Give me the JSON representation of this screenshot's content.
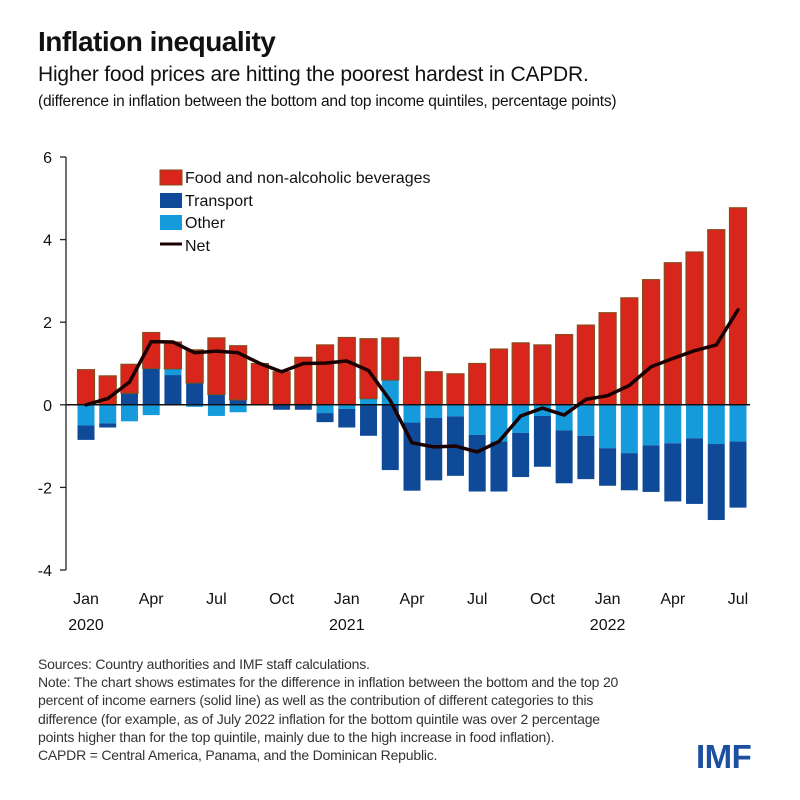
{
  "header": {
    "title": "Inflation inequality",
    "subtitle": "Higher food prices are hitting the poorest hardest in CAPDR.",
    "units": "(difference in inflation between the bottom and top income quintiles, percentage points)"
  },
  "footer": {
    "lines": [
      "Sources: Country authorities and IMF staff calculations.",
      "Note: The chart shows estimates for the difference in inflation between the bottom and the top 20",
      "percent of income earners (solid line) as well as the contribution of different categories to this",
      "difference (for example, as of July 2022 inflation for the bottom quintile was over 2 percentage",
      "points higher than for the top quintile, mainly due to the high increase in food inflation).",
      "CAPDR = Central America, Panama, and the Dominican Republic."
    ],
    "logo": "IMF"
  },
  "colors": {
    "food": "#d9261c",
    "food_edge": "#8b4a1e",
    "transport": "#0f4a99",
    "other": "#159bdc",
    "net": "#1a0000",
    "logo": "#1c4fa0"
  },
  "chart_data": {
    "type": "bar",
    "stacked": true,
    "title": "Inflation inequality",
    "xlabel": "",
    "ylabel": "",
    "ylim": [
      -4,
      6
    ],
    "yticks": [
      6,
      4,
      2,
      0,
      -2,
      -4
    ],
    "legend_position": "top-left",
    "x": [
      "Jan 2020",
      "Feb 2020",
      "Mar 2020",
      "Apr 2020",
      "May 2020",
      "Jun 2020",
      "Jul 2020",
      "Aug 2020",
      "Sep 2020",
      "Oct 2020",
      "Nov 2020",
      "Dec 2020",
      "Jan 2021",
      "Feb 2021",
      "Mar 2021",
      "Apr 2021",
      "May 2021",
      "Jun 2021",
      "Jul 2021",
      "Aug 2021",
      "Sep 2021",
      "Oct 2021",
      "Nov 2021",
      "Dec 2021",
      "Jan 2022",
      "Feb 2022",
      "Mar 2022",
      "Apr 2022",
      "May 2022",
      "Jun 2022",
      "Jul 2022"
    ],
    "xtick_labels": [
      {
        "index": 0,
        "month": "Jan",
        "year": "2020"
      },
      {
        "index": 3,
        "month": "Apr",
        "year": ""
      },
      {
        "index": 6,
        "month": "Jul",
        "year": ""
      },
      {
        "index": 9,
        "month": "Oct",
        "year": ""
      },
      {
        "index": 12,
        "month": "Jan",
        "year": "2021"
      },
      {
        "index": 15,
        "month": "Apr",
        "year": ""
      },
      {
        "index": 18,
        "month": "Jul",
        "year": ""
      },
      {
        "index": 21,
        "month": "Oct",
        "year": ""
      },
      {
        "index": 24,
        "month": "Jan",
        "year": "2022"
      },
      {
        "index": 27,
        "month": "Apr",
        "year": ""
      },
      {
        "index": 30,
        "month": "Jul",
        "year": ""
      }
    ],
    "series": [
      {
        "name": "Food and non-alcoholic beverages",
        "key": "food",
        "values": [
          0.85,
          0.7,
          0.7,
          0.87,
          0.65,
          0.8,
          1.37,
          1.31,
          1.0,
          0.8,
          1.15,
          1.45,
          1.63,
          1.45,
          1.02,
          1.15,
          0.8,
          0.75,
          1.0,
          1.35,
          1.5,
          1.45,
          1.7,
          1.93,
          2.23,
          2.59,
          3.03,
          3.44,
          3.7,
          4.24,
          4.77
        ]
      },
      {
        "name": "Transport",
        "key": "transport",
        "values": [
          -0.35,
          -0.1,
          0.28,
          0.88,
          0.72,
          0.53,
          0.25,
          0.12,
          0,
          -0.12,
          -0.12,
          -0.22,
          -0.45,
          -0.75,
          -1.58,
          -1.65,
          -1.51,
          -1.44,
          -1.37,
          -1.21,
          -1.07,
          -1.23,
          -1.28,
          -1.05,
          -0.91,
          -0.9,
          -1.13,
          -1.41,
          -1.59,
          -1.84,
          -1.6
        ]
      },
      {
        "name": "Other",
        "key": "other",
        "values": [
          -0.5,
          -0.45,
          -0.4,
          -0.25,
          0.15,
          -0.05,
          -0.27,
          -0.18,
          0,
          0,
          0,
          -0.2,
          -0.1,
          0.15,
          0.6,
          -0.43,
          -0.32,
          -0.28,
          -0.73,
          -0.89,
          -0.68,
          -0.27,
          -0.62,
          -0.75,
          -1.05,
          -1.17,
          -0.98,
          -0.93,
          -0.81,
          -0.95,
          -0.89
        ]
      }
    ],
    "net": {
      "name": "Net",
      "values": [
        0.0,
        0.15,
        0.55,
        1.53,
        1.52,
        1.26,
        1.3,
        1.26,
        1.0,
        0.8,
        1.0,
        1.01,
        1.06,
        0.83,
        0.1,
        -0.92,
        -1.02,
        -1.0,
        -1.14,
        -0.89,
        -0.27,
        -0.08,
        -0.25,
        0.13,
        0.22,
        0.47,
        0.92,
        1.12,
        1.31,
        1.45,
        2.3
      ]
    }
  }
}
